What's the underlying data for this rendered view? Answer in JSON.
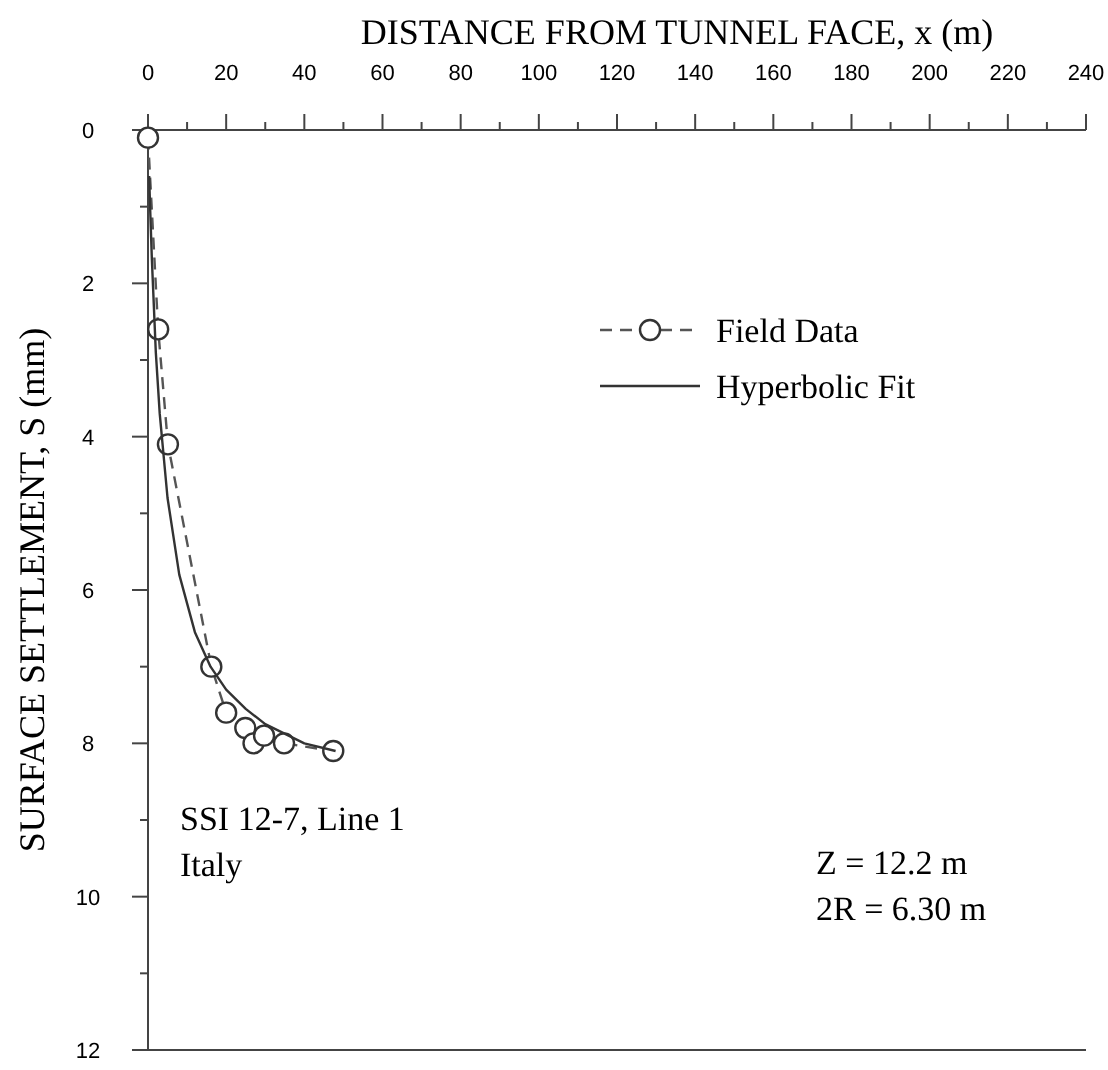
{
  "chart_data": {
    "type": "line",
    "xlabel": "DISTANCE FROM TUNNEL FACE, x (m)",
    "ylabel": "SURFACE SETTLEMENT, S (mm)",
    "xlim": [
      0,
      240
    ],
    "xticks": [
      0,
      {
        "value": 10,
        "label": null
      },
      20,
      {
        "value": 30,
        "label": null
      },
      40,
      {
        "value": 50,
        "label": null
      },
      60,
      {
        "value": 70,
        "label": null
      },
      80,
      {
        "value": 90,
        "label": null
      },
      100,
      {
        "value": 110,
        "label": null
      },
      120,
      {
        "value": 130,
        "label": null
      },
      140,
      {
        "value": 150,
        "label": null
      },
      160,
      {
        "value": 170,
        "label": null
      },
      180,
      {
        "value": 190,
        "label": null
      },
      200,
      {
        "value": 210,
        "label": null
      },
      220,
      {
        "value": 230,
        "label": null
      },
      240
    ],
    "ylim": [
      12,
      0
    ],
    "yticks": [
      0,
      {
        "value": 1,
        "label": null
      },
      2,
      {
        "value": 3,
        "label": null
      },
      4,
      {
        "value": 5,
        "label": null
      },
      6,
      {
        "value": 7,
        "label": null
      },
      8,
      {
        "value": 9,
        "label": null
      },
      10,
      {
        "value": 11,
        "label": null
      },
      12
    ],
    "grid": false,
    "legend": "top right",
    "series": [
      {
        "name": "Field Data",
        "color": "#555555",
        "marker": "circle",
        "line_style": "dashed",
        "x": [
          0,
          2.6,
          5.1,
          16.2,
          20,
          24.9,
          27,
          29.7,
          34.8,
          47.4
        ],
        "values": [
          0.1,
          2.6,
          4.1,
          7.0,
          7.6,
          7.8,
          8.0,
          7.9,
          8.0,
          8.1
        ]
      },
      {
        "name": "Hyperbolic Fit",
        "color": "#333333",
        "marker": "none",
        "line_style": "solid",
        "x": [
          0.3,
          0.5,
          1,
          2,
          3,
          5,
          8,
          12,
          16,
          20,
          25,
          30,
          40,
          48
        ],
        "values": [
          0.6,
          0.95,
          1.7,
          2.9,
          3.7,
          4.8,
          5.8,
          6.55,
          7.0,
          7.3,
          7.55,
          7.75,
          8.0,
          8.1
        ]
      }
    ],
    "annotations": [
      "SSI 12-7, Line 1\nItaly",
      "Z = 12.2 m\n2R = 6.30 m"
    ]
  }
}
